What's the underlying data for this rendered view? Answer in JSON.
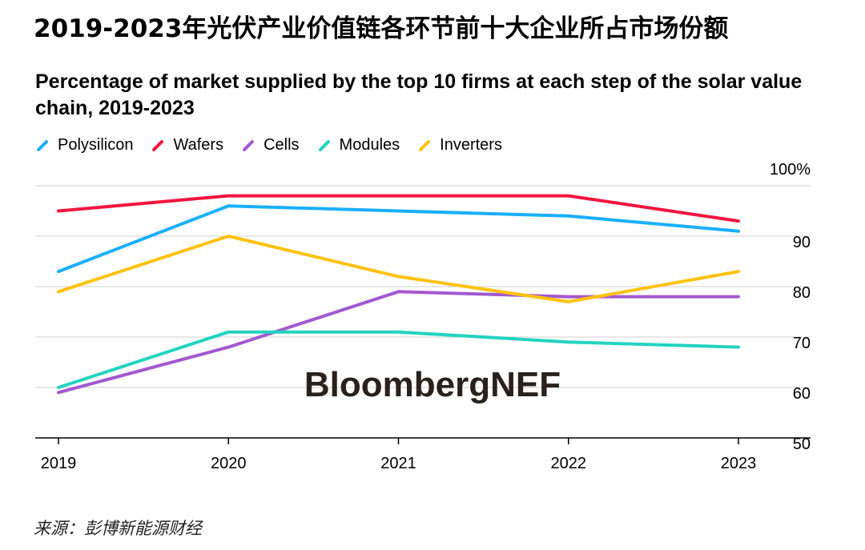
{
  "header": {
    "cn_title": "2019-2023年光伏产业价值链各环节前十大企业所占市场份额",
    "en_title": "Percentage of market supplied by the top 10 firms at each step of the solar value chain, 2019-2023"
  },
  "watermark": "BloombergNEF",
  "source": "来源：彭博新能源财经",
  "chart_data": {
    "type": "line",
    "title": "Percentage of market supplied by the top 10 firms at each step of the solar value chain, 2019-2023",
    "x": [
      "2019",
      "2020",
      "2021",
      "2022",
      "2023"
    ],
    "ylim": [
      50,
      100
    ],
    "yticks": [
      50,
      60,
      70,
      80,
      90,
      100
    ],
    "ytick_labels": [
      "50",
      "60",
      "70",
      "80",
      "90",
      "100%"
    ],
    "grid": true,
    "legend_position": "top-left",
    "series": [
      {
        "name": "Polysilicon",
        "color": "#1AAFFF",
        "values": [
          83,
          96,
          95,
          94,
          91
        ]
      },
      {
        "name": "Wafers",
        "color": "#F2153F",
        "values": [
          95,
          98,
          98,
          98,
          93
        ]
      },
      {
        "name": "Cells",
        "color": "#A259D0",
        "values": [
          59,
          68,
          79,
          78,
          78
        ]
      },
      {
        "name": "Modules",
        "color": "#23D3C0",
        "values": [
          60,
          71,
          71,
          69,
          68
        ]
      },
      {
        "name": "Inverters",
        "color": "#FFC20E",
        "values": [
          79,
          90,
          82,
          77,
          83
        ]
      }
    ]
  }
}
